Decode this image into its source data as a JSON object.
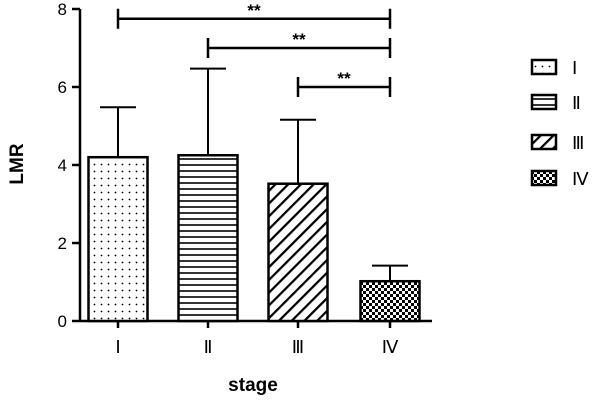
{
  "chart_data": {
    "type": "bar",
    "xlabel": "stage",
    "ylabel": "LMR",
    "ylim": [
      0,
      8
    ],
    "yticks": [
      0,
      2,
      4,
      6,
      8
    ],
    "categories": [
      "Ⅰ",
      "Ⅱ",
      "Ⅲ",
      "Ⅳ"
    ],
    "values": [
      4.2,
      4.25,
      3.52,
      1.02
    ],
    "error_upper": [
      5.48,
      6.47,
      5.16,
      1.42
    ],
    "patterns": [
      "dots",
      "horizontal-lines",
      "diagonal-lines",
      "checkerboard"
    ],
    "legend": {
      "placement": "right",
      "entries": [
        "Ⅰ",
        "Ⅱ",
        "Ⅲ",
        "Ⅳ"
      ]
    },
    "significance": [
      {
        "from": "Ⅰ",
        "to": "Ⅳ",
        "label": "**"
      },
      {
        "from": "Ⅱ",
        "to": "Ⅳ",
        "label": "**"
      },
      {
        "from": "Ⅲ",
        "to": "Ⅳ",
        "label": "**"
      }
    ],
    "grid": false
  }
}
